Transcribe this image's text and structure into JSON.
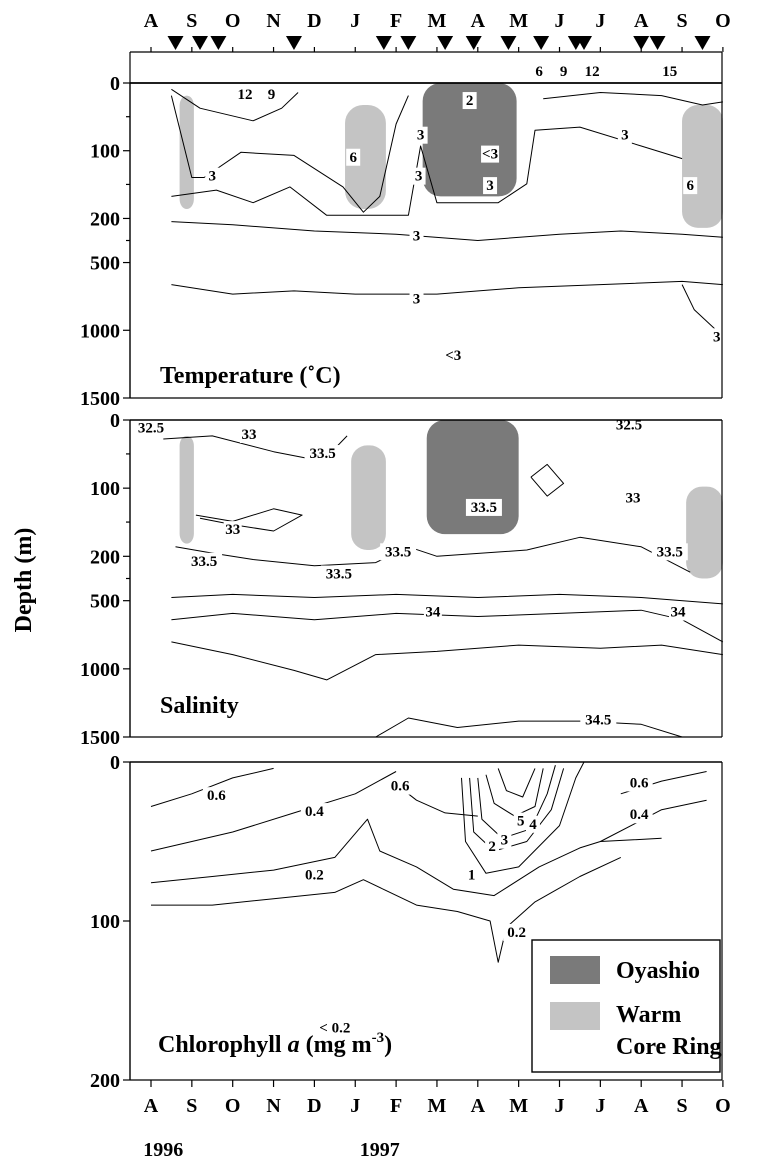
{
  "chart_data": {
    "type": "contour",
    "ylabel": "Depth (m)",
    "months_bottom": [
      "A",
      "S",
      "O",
      "N",
      "D",
      "J",
      "F",
      "M",
      "A",
      "M",
      "J",
      "J",
      "A",
      "S",
      "O"
    ],
    "months_top": [
      "A",
      "S",
      "O",
      "N",
      "D",
      "J",
      "F",
      "M",
      "A",
      "M",
      "J",
      "J",
      "A",
      "S",
      "O"
    ],
    "years": [
      "1996",
      "1997"
    ],
    "sampling_markers_month_pos": [
      0.6,
      1.2,
      1.65,
      3.5,
      5.7,
      6.3,
      7.2,
      7.9,
      8.75,
      9.55,
      10.4,
      10.6,
      12.0,
      12.4,
      13.5
    ],
    "top_axis_numbers": [
      {
        "text": "6",
        "month_pos": 9.5
      },
      {
        "text": "9",
        "month_pos": 10.1
      },
      {
        "text": "12",
        "month_pos": 10.8
      },
      {
        "text": "15",
        "month_pos": 12.7
      }
    ],
    "panels": [
      {
        "id": "temperature",
        "title": "Temperature (˚C)",
        "y_ticks": [
          "0",
          "100",
          "200",
          "500",
          "1000",
          "1500"
        ],
        "contour_labels": [
          {
            "text": "12",
            "m": 2.3,
            "d": 0.05
          },
          {
            "text": "9",
            "m": 2.95,
            "d": 0.05
          },
          {
            "text": "2",
            "m": 7.8,
            "d": 0.07
          },
          {
            "text": "3",
            "m": 6.6,
            "d": 0.18
          },
          {
            "text": "6",
            "m": 4.95,
            "d": 0.25
          },
          {
            "text": "<3",
            "m": 8.3,
            "d": 0.24
          },
          {
            "text": "3",
            "m": 1.5,
            "d": 0.31
          },
          {
            "text": "3",
            "m": 6.55,
            "d": 0.31
          },
          {
            "text": "3",
            "m": 8.3,
            "d": 0.34
          },
          {
            "text": "3",
            "m": 11.6,
            "d": 0.18
          },
          {
            "text": "6",
            "m": 13.2,
            "d": 0.34
          },
          {
            "text": "3",
            "m": 6.5,
            "d": 0.5
          },
          {
            "text": "3",
            "m": 6.5,
            "d": 0.7
          },
          {
            "text": "3",
            "m": 13.85,
            "d": 0.82
          },
          {
            "text": "<3",
            "m": 7.4,
            "d": 0.88
          }
        ]
      },
      {
        "id": "salinity",
        "title": "Salinity",
        "y_ticks": [
          "0",
          "100",
          "200",
          "500",
          "1000",
          "1500"
        ],
        "contour_labels": [
          {
            "text": "32.5",
            "m": 0.0,
            "d": 0.04
          },
          {
            "text": "33",
            "m": 2.4,
            "d": 0.06
          },
          {
            "text": "32.5",
            "m": 11.7,
            "d": 0.03
          },
          {
            "text": "33.5",
            "m": 4.2,
            "d": 0.12
          },
          {
            "text": "33.5",
            "m": 8.15,
            "d": 0.29
          },
          {
            "text": "33",
            "m": 11.8,
            "d": 0.26
          },
          {
            "text": "33",
            "m": 2.0,
            "d": 0.36
          },
          {
            "text": "33.5",
            "m": 1.3,
            "d": 0.46
          },
          {
            "text": "33.5",
            "m": 4.6,
            "d": 0.5
          },
          {
            "text": "33.5",
            "m": 6.05,
            "d": 0.43
          },
          {
            "text": "33.5",
            "m": 12.7,
            "d": 0.43
          },
          {
            "text": "34",
            "m": 6.9,
            "d": 0.62
          },
          {
            "text": "34",
            "m": 12.9,
            "d": 0.62
          },
          {
            "text": "34.5",
            "m": 10.95,
            "d": 0.96
          }
        ]
      },
      {
        "id": "chlorophyll",
        "title_main": "Chlorophyll ",
        "title_italic": "a",
        "title_unit": " (mg m",
        "title_sup": "-3",
        "title_end": ")",
        "y_ticks": [
          "0",
          "100",
          "200"
        ],
        "contour_labels": [
          {
            "text": "0.6",
            "m": 1.6,
            "d": 0.12
          },
          {
            "text": "0.6",
            "m": 6.1,
            "d": 0.09
          },
          {
            "text": "0.4",
            "m": 4.0,
            "d": 0.17
          },
          {
            "text": "0.6",
            "m": 11.95,
            "d": 0.08
          },
          {
            "text": "0.4",
            "m": 11.95,
            "d": 0.18
          },
          {
            "text": "5",
            "m": 9.05,
            "d": 0.2
          },
          {
            "text": "4",
            "m": 9.35,
            "d": 0.21
          },
          {
            "text": "3",
            "m": 8.65,
            "d": 0.26
          },
          {
            "text": "2",
            "m": 8.35,
            "d": 0.28
          },
          {
            "text": "1",
            "m": 7.85,
            "d": 0.37
          },
          {
            "text": "0.2",
            "m": 4.0,
            "d": 0.37
          },
          {
            "text": "0.2",
            "m": 8.95,
            "d": 0.55
          },
          {
            "text": "< 0.2",
            "m": 4.5,
            "d": 0.85
          }
        ]
      }
    ],
    "legend": [
      {
        "label": "Oyashio",
        "color": "#7a7a7a"
      },
      {
        "label": "Warm",
        "label2": "Core Ring",
        "color": "#c4c4c4"
      }
    ],
    "colors": {
      "oyashio": "#7a7a7a",
      "warm_core_ring": "#c4c4c4",
      "line": "#000000"
    }
  }
}
